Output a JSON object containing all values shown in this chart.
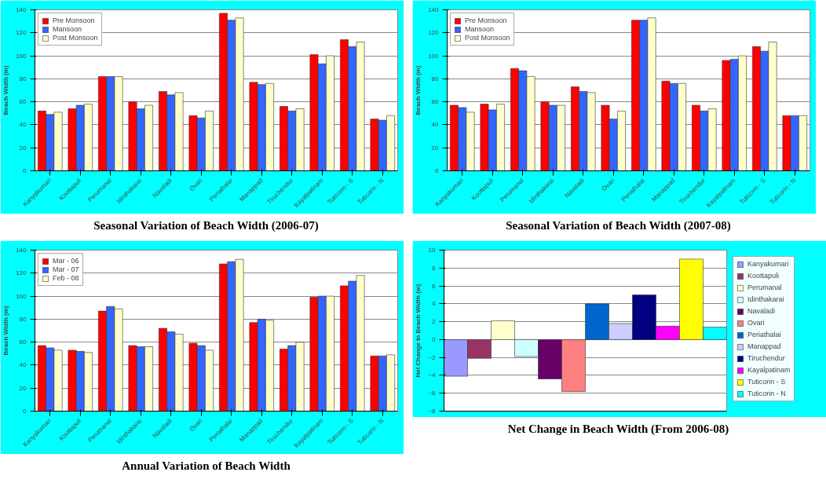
{
  "chart_data": [
    {
      "type": "bar",
      "title": "Seasonal Variation of Beach Width (2006-07)",
      "ylabel": "Beach Width (m)",
      "categories": [
        "Kanyakumari",
        "Koottapuli",
        "Perumanal",
        "Idinthakarai",
        "Navaladi",
        "Ovari",
        "Periathalai",
        "Manappad",
        "Tiruchendur",
        "Kayalpatinam",
        "Tuticorin - S",
        "Tuticorin - N"
      ],
      "ylim": [
        0,
        140
      ],
      "yticks": [
        0,
        20,
        40,
        60,
        80,
        100,
        120,
        140
      ],
      "grid": "y",
      "legend": "top left",
      "series": [
        {
          "name": "Pre Monsoon",
          "color": "#ff0000",
          "values": [
            52,
            54,
            82,
            60,
            69,
            48,
            137,
            77,
            56,
            101,
            114,
            45
          ]
        },
        {
          "name": "Mansoon",
          "color": "#3366ff",
          "values": [
            49,
            57,
            82,
            54,
            66,
            46,
            131,
            75,
            52,
            93,
            108,
            44
          ]
        },
        {
          "name": "Post Monsoon",
          "color": "#ffffcc",
          "values": [
            51,
            58,
            82,
            57,
            68,
            52,
            133,
            76,
            54,
            100,
            112,
            48
          ]
        }
      ]
    },
    {
      "type": "bar",
      "title": "Seasonal Variation of Beach Width (2007-08)",
      "ylabel": "Beach Width (m)",
      "categories": [
        "Kanyakumari",
        "Koottapuli",
        "Perumanal",
        "Idinthakarai",
        "Navaladi",
        "Ovari",
        "Periathalai",
        "Manappad",
        "Tiruchendur",
        "Kayalpatinam",
        "Tuticorin - S",
        "Tuticorin - N"
      ],
      "ylim": [
        0,
        140
      ],
      "yticks": [
        0,
        20,
        40,
        60,
        80,
        100,
        120,
        140
      ],
      "grid": "y",
      "legend": "top left",
      "series": [
        {
          "name": "Pre Monsoon",
          "color": "#ff0000",
          "values": [
            57,
            58,
            89,
            60,
            73,
            57,
            131,
            78,
            57,
            96,
            108,
            48
          ]
        },
        {
          "name": "Mansoon",
          "color": "#3366ff",
          "values": [
            55,
            53,
            87,
            57,
            69,
            45,
            131,
            76,
            52,
            97,
            104,
            48
          ]
        },
        {
          "name": "Post Monsoon",
          "color": "#ffffcc",
          "values": [
            51,
            58,
            82,
            57,
            68,
            52,
            133,
            76,
            54,
            100,
            112,
            48
          ]
        }
      ]
    },
    {
      "type": "bar",
      "title": "Annual Variation of Beach Width",
      "ylabel": "Beach Width (m)",
      "categories": [
        "Kanyakumari",
        "Koottapuli",
        "Perumanal",
        "Idinthakarai",
        "Navaladi",
        "Ovari",
        "Periathalai",
        "Manappad",
        "Tiruchendur",
        "Kayalpatinam",
        "Tuticorin - S",
        "Tuticorin - N"
      ],
      "ylim": [
        0,
        140
      ],
      "yticks": [
        0,
        20,
        40,
        60,
        80,
        100,
        120,
        140
      ],
      "grid": "y",
      "legend": "top left",
      "series": [
        {
          "name": "Mar - 06",
          "color": "#ff0000",
          "values": [
            57,
            53,
            87,
            57,
            72,
            59,
            128,
            77,
            54,
            99,
            109,
            48
          ]
        },
        {
          "name": "Mar - 07",
          "color": "#3366ff",
          "values": [
            55,
            52,
            91,
            56,
            69,
            57,
            130,
            80,
            57,
            100,
            113,
            48
          ]
        },
        {
          "name": "Feb - 08",
          "color": "#ffffcc",
          "values": [
            53,
            51,
            89,
            56,
            67,
            53,
            132,
            79,
            60,
            100,
            118,
            49
          ]
        }
      ]
    },
    {
      "type": "bar",
      "title": "Net Change in Beach Width (From 2006-08)",
      "ylabel": "Net Change in Beach Width (m)",
      "categories": [
        null
      ],
      "ylim": [
        -8,
        10
      ],
      "yticks": [
        -8,
        -6,
        -4,
        -2,
        0,
        2,
        4,
        6,
        8,
        10
      ],
      "grid": "y",
      "legend": "right",
      "tick_labels": "y",
      "series": [
        {
          "name": "Kanyakumari",
          "color": "#9999ff",
          "values": [
            -4.1
          ]
        },
        {
          "name": "Koottapuli",
          "color": "#993366",
          "values": [
            -2.1
          ]
        },
        {
          "name": "Perumanal",
          "color": "#ffffcc",
          "values": [
            2.1
          ]
        },
        {
          "name": "Idinthakarai",
          "color": "#ccffff",
          "values": [
            -1.9
          ]
        },
        {
          "name": "Navaladi",
          "color": "#660066",
          "values": [
            -4.4
          ]
        },
        {
          "name": "Ovari",
          "color": "#ff8080",
          "values": [
            -5.8
          ]
        },
        {
          "name": "Periathalai",
          "color": "#0066cc",
          "values": [
            4
          ]
        },
        {
          "name": "Manappad",
          "color": "#ccccff",
          "values": [
            1.8
          ]
        },
        {
          "name": "Tiruchendur",
          "color": "#000080",
          "values": [
            5
          ]
        },
        {
          "name": "Kayalpatinam",
          "color": "#ff00ff",
          "values": [
            1.5
          ]
        },
        {
          "name": "Tuticorin - S",
          "color": "#ffff00",
          "values": [
            9
          ]
        },
        {
          "name": "Tuticorin - N",
          "color": "#00ffff",
          "values": [
            1.4
          ]
        }
      ]
    }
  ]
}
